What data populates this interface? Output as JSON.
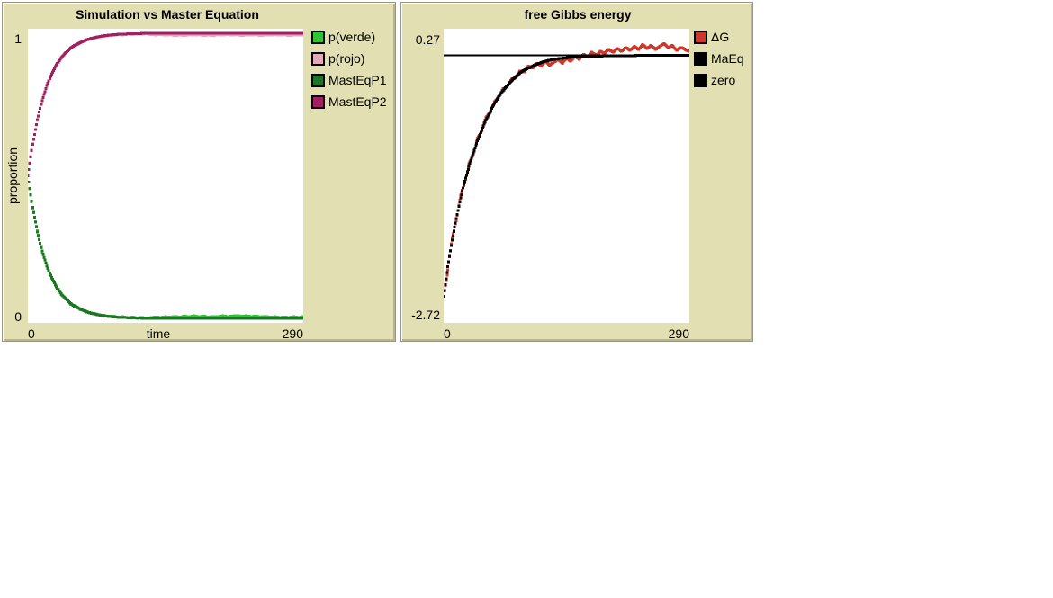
{
  "ui": {
    "panel_background": "#e2dfb3",
    "plot_background": "#ffffff",
    "text_color": "#000000"
  },
  "chart_data": [
    {
      "type": "scatter",
      "title": "Simulation vs Master Equation",
      "xlabel": "time",
      "ylabel": "proportion",
      "xlim": [
        0,
        290
      ],
      "ylim": [
        0,
        1
      ],
      "x_ticks": [
        "0",
        "290"
      ],
      "y_ticks": [
        "1",
        "0"
      ],
      "grid": false,
      "legend_position": "right",
      "series": [
        {
          "name": "p(verde)",
          "color": "#2fc435",
          "style": "dots",
          "marker_px": 3,
          "points": [
            [
              0,
              0.5
            ],
            [
              5,
              0.39
            ],
            [
              10,
              0.313
            ],
            [
              15,
              0.24
            ],
            [
              20,
              0.196
            ],
            [
              25,
              0.151
            ],
            [
              30,
              0.126
            ],
            [
              35,
              0.096
            ],
            [
              40,
              0.084
            ],
            [
              45,
              0.063
            ],
            [
              50,
              0.058
            ],
            [
              55,
              0.046
            ],
            [
              60,
              0.041
            ],
            [
              65,
              0.034
            ],
            [
              70,
              0.032
            ],
            [
              75,
              0.027
            ],
            [
              80,
              0.026
            ],
            [
              85,
              0.022
            ],
            [
              90,
              0.023
            ],
            [
              95,
              0.019
            ],
            [
              100,
              0.021
            ],
            [
              105,
              0.017
            ],
            [
              110,
              0.02
            ],
            [
              115,
              0.016
            ],
            [
              120,
              0.019
            ],
            [
              125,
              0.015
            ],
            [
              130,
              0.018
            ],
            [
              135,
              0.02
            ],
            [
              140,
              0.018
            ],
            [
              145,
              0.021
            ],
            [
              150,
              0.019
            ],
            [
              155,
              0.022
            ],
            [
              160,
              0.019
            ],
            [
              165,
              0.023
            ],
            [
              170,
              0.02
            ],
            [
              175,
              0.024
            ],
            [
              180,
              0.02
            ],
            [
              185,
              0.023
            ],
            [
              190,
              0.019
            ],
            [
              195,
              0.022
            ],
            [
              200,
              0.02
            ],
            [
              205,
              0.024
            ],
            [
              210,
              0.021
            ],
            [
              215,
              0.023
            ],
            [
              220,
              0.025
            ],
            [
              225,
              0.022
            ],
            [
              230,
              0.024
            ],
            [
              235,
              0.021
            ],
            [
              240,
              0.023
            ],
            [
              245,
              0.02
            ],
            [
              250,
              0.022
            ],
            [
              255,
              0.019
            ],
            [
              260,
              0.021
            ],
            [
              265,
              0.018
            ],
            [
              270,
              0.02
            ],
            [
              275,
              0.018
            ],
            [
              280,
              0.021
            ],
            [
              285,
              0.018
            ],
            [
              290,
              0.022
            ]
          ]
        },
        {
          "name": "p(rojo)",
          "color": "#e2a9ba",
          "style": "dots",
          "marker_px": 3,
          "points": [
            [
              0,
              0.5
            ],
            [
              5,
              0.61
            ],
            [
              10,
              0.688
            ],
            [
              15,
              0.759
            ],
            [
              20,
              0.804
            ],
            [
              25,
              0.849
            ],
            [
              30,
              0.874
            ],
            [
              35,
              0.903
            ],
            [
              40,
              0.917
            ],
            [
              45,
              0.936
            ],
            [
              50,
              0.943
            ],
            [
              55,
              0.952
            ],
            [
              60,
              0.959
            ],
            [
              65,
              0.965
            ],
            [
              70,
              0.968
            ],
            [
              75,
              0.972
            ],
            [
              80,
              0.974
            ],
            [
              85,
              0.977
            ],
            [
              90,
              0.977
            ],
            [
              95,
              0.98
            ],
            [
              100,
              0.979
            ],
            [
              105,
              0.982
            ],
            [
              110,
              0.98
            ],
            [
              115,
              0.983
            ],
            [
              120,
              0.981
            ],
            [
              125,
              0.984
            ],
            [
              130,
              0.98
            ],
            [
              135,
              0.979
            ],
            [
              140,
              0.981
            ],
            [
              145,
              0.978
            ],
            [
              150,
              0.98
            ],
            [
              155,
              0.977
            ],
            [
              160,
              0.979
            ],
            [
              165,
              0.977
            ],
            [
              170,
              0.98
            ],
            [
              175,
              0.978
            ],
            [
              180,
              0.98
            ],
            [
              185,
              0.977
            ],
            [
              190,
              0.979
            ],
            [
              195,
              0.977
            ],
            [
              200,
              0.98
            ],
            [
              205,
              0.978
            ],
            [
              210,
              0.981
            ],
            [
              215,
              0.978
            ],
            [
              220,
              0.98
            ],
            [
              225,
              0.977
            ],
            [
              230,
              0.979
            ],
            [
              235,
              0.978
            ],
            [
              240,
              0.98
            ],
            [
              245,
              0.977
            ],
            [
              250,
              0.979
            ],
            [
              255,
              0.978
            ],
            [
              260,
              0.98
            ],
            [
              265,
              0.978
            ],
            [
              270,
              0.98
            ],
            [
              275,
              0.977
            ],
            [
              280,
              0.979
            ],
            [
              285,
              0.978
            ],
            [
              290,
              0.978
            ]
          ]
        },
        {
          "name": "MastEqP1",
          "color": "#207426",
          "style": "dots",
          "marker_px": 3,
          "points": [
            [
              0,
              0.5
            ],
            [
              5,
              0.393
            ],
            [
              10,
              0.309
            ],
            [
              15,
              0.244
            ],
            [
              20,
              0.193
            ],
            [
              25,
              0.154
            ],
            [
              30,
              0.123
            ],
            [
              35,
              0.099
            ],
            [
              40,
              0.081
            ],
            [
              45,
              0.066
            ],
            [
              50,
              0.055
            ],
            [
              60,
              0.039
            ],
            [
              70,
              0.03
            ],
            [
              80,
              0.024
            ],
            [
              90,
              0.02
            ],
            [
              100,
              0.018
            ],
            [
              120,
              0.016
            ],
            [
              140,
              0.015
            ],
            [
              170,
              0.015
            ],
            [
              200,
              0.015
            ],
            [
              240,
              0.015
            ],
            [
              290,
              0.015
            ]
          ]
        },
        {
          "name": "MastEqP2",
          "color": "#a41e62",
          "style": "dots",
          "marker_px": 3,
          "points": [
            [
              0,
              0.5
            ],
            [
              5,
              0.607
            ],
            [
              10,
              0.691
            ],
            [
              15,
              0.756
            ],
            [
              20,
              0.807
            ],
            [
              25,
              0.846
            ],
            [
              30,
              0.877
            ],
            [
              35,
              0.901
            ],
            [
              40,
              0.919
            ],
            [
              45,
              0.934
            ],
            [
              50,
              0.945
            ],
            [
              60,
              0.961
            ],
            [
              70,
              0.97
            ],
            [
              80,
              0.976
            ],
            [
              90,
              0.98
            ],
            [
              100,
              0.982
            ],
            [
              120,
              0.984
            ],
            [
              140,
              0.985
            ],
            [
              170,
              0.985
            ],
            [
              200,
              0.985
            ],
            [
              240,
              0.985
            ],
            [
              290,
              0.985
            ]
          ]
        }
      ]
    },
    {
      "type": "scatter",
      "title": "free Gibbs energy",
      "xlabel": "",
      "ylabel": "",
      "xlim": [
        0,
        290
      ],
      "ylim": [
        -2.72,
        0.27
      ],
      "x_ticks": [
        "0",
        "290"
      ],
      "y_ticks": [
        "0.27",
        "-2.72"
      ],
      "grid": false,
      "legend_position": "right",
      "series": [
        {
          "name": "ΔG",
          "color": "#d0372b",
          "style": "dots",
          "marker_px": 3,
          "points": [
            [
              0,
              -2.45
            ],
            [
              5,
              -2.18
            ],
            [
              10,
              -1.85
            ],
            [
              15,
              -1.68
            ],
            [
              20,
              -1.42
            ],
            [
              25,
              -1.3
            ],
            [
              30,
              -1.1
            ],
            [
              35,
              -1.01
            ],
            [
              40,
              -0.84
            ],
            [
              45,
              -0.77
            ],
            [
              50,
              -0.63
            ],
            [
              55,
              -0.58
            ],
            [
              60,
              -0.47
            ],
            [
              65,
              -0.43
            ],
            [
              70,
              -0.34
            ],
            [
              75,
              -0.32
            ],
            [
              80,
              -0.24
            ],
            [
              85,
              -0.23
            ],
            [
              90,
              -0.16
            ],
            [
              95,
              -0.17
            ],
            [
              100,
              -0.11
            ],
            [
              105,
              -0.13
            ],
            [
              110,
              -0.08
            ],
            [
              115,
              -0.11
            ],
            [
              120,
              -0.06
            ],
            [
              125,
              -0.1
            ],
            [
              130,
              -0.07
            ],
            [
              135,
              -0.04
            ],
            [
              140,
              -0.08
            ],
            [
              145,
              -0.03
            ],
            [
              150,
              -0.06
            ],
            [
              155,
              -0.01
            ],
            [
              160,
              -0.04
            ],
            [
              165,
              0.01
            ],
            [
              170,
              -0.02
            ],
            [
              175,
              0.03
            ],
            [
              180,
              0.0
            ],
            [
              185,
              0.04
            ],
            [
              190,
              0.02
            ],
            [
              195,
              0.06
            ],
            [
              200,
              0.03
            ],
            [
              205,
              0.07
            ],
            [
              210,
              0.04
            ],
            [
              215,
              0.08
            ],
            [
              220,
              0.05
            ],
            [
              225,
              0.09
            ],
            [
              230,
              0.06
            ],
            [
              235,
              0.11
            ],
            [
              240,
              0.07
            ],
            [
              245,
              0.1
            ],
            [
              250,
              0.06
            ],
            [
              255,
              0.09
            ],
            [
              260,
              0.12
            ],
            [
              265,
              0.08
            ],
            [
              270,
              0.1
            ],
            [
              275,
              0.05
            ],
            [
              280,
              0.08
            ],
            [
              285,
              0.06
            ],
            [
              290,
              0.04
            ]
          ]
        },
        {
          "name": "MaEq",
          "color": "#000000",
          "style": "dots",
          "marker_px": 3,
          "points": [
            [
              0,
              -2.45
            ],
            [
              5,
              -2.15
            ],
            [
              10,
              -1.88
            ],
            [
              15,
              -1.66
            ],
            [
              20,
              -1.45
            ],
            [
              25,
              -1.28
            ],
            [
              30,
              -1.13
            ],
            [
              35,
              -0.99
            ],
            [
              40,
              -0.87
            ],
            [
              45,
              -0.76
            ],
            [
              50,
              -0.66
            ],
            [
              55,
              -0.57
            ],
            [
              60,
              -0.49
            ],
            [
              65,
              -0.42
            ],
            [
              70,
              -0.36
            ],
            [
              75,
              -0.31
            ],
            [
              80,
              -0.26
            ],
            [
              85,
              -0.22
            ],
            [
              90,
              -0.18
            ],
            [
              95,
              -0.15
            ],
            [
              100,
              -0.13
            ],
            [
              110,
              -0.09
            ],
            [
              120,
              -0.06
            ],
            [
              130,
              -0.04
            ],
            [
              140,
              -0.03
            ],
            [
              150,
              -0.02
            ],
            [
              160,
              -0.015
            ],
            [
              180,
              -0.008
            ],
            [
              200,
              -0.004
            ],
            [
              240,
              -0.001
            ],
            [
              290,
              0.0
            ]
          ]
        },
        {
          "name": "zero",
          "color": "#000000",
          "style": "line",
          "line_width": 2.4,
          "points": [
            [
              0,
              0
            ],
            [
              290,
              0
            ]
          ]
        }
      ]
    }
  ]
}
